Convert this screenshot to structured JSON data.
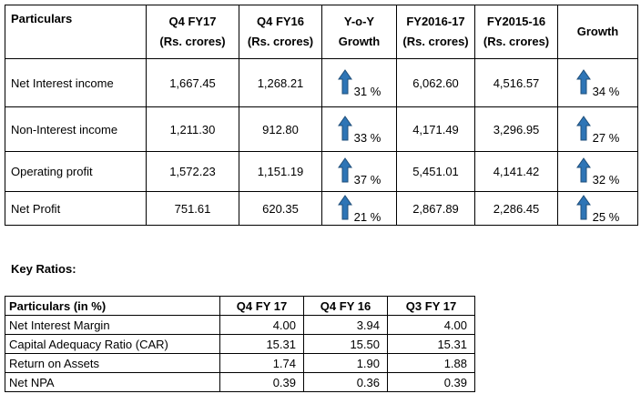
{
  "results_table": {
    "header": [
      [
        "Particulars"
      ],
      [
        "Q4 FY17",
        "(Rs. crores)"
      ],
      [
        "Q4 FY16",
        "(Rs. crores)"
      ],
      [
        "Y-o-Y",
        "Growth"
      ],
      [
        "FY2016-17",
        "(Rs. crores)"
      ],
      [
        "FY2015-16",
        "(Rs. crores)"
      ],
      [
        "Growth"
      ]
    ],
    "rows": [
      [
        "Net Interest income",
        "1,667.45",
        "1,268.21",
        "31 %",
        "6,062.60",
        "4,516.57",
        "34 %"
      ],
      [
        "Non-Interest income",
        "1,211.30",
        "912.80",
        "33 %",
        "4,171.49",
        "3,296.95",
        "27 %"
      ],
      [
        "Operating profit",
        "1,572.23",
        "1,151.19",
        "37 %",
        "5,451.01",
        "4,141.42",
        "32 %"
      ],
      [
        "Net Profit",
        "751.61",
        "620.35",
        "21 %",
        "2,867.89",
        "2,286.45",
        "25 %"
      ]
    ]
  },
  "key_ratios": {
    "title": "Key Ratios:",
    "header": [
      "Particulars (in %)",
      "Q4 FY 17",
      "Q4 FY 16",
      "Q3 FY 17"
    ],
    "rows": [
      [
        "Net Interest Margin",
        "4.00",
        "3.94",
        "4.00"
      ],
      [
        "Capital Adequacy Ratio (CAR)",
        "15.31",
        "15.50",
        "15.31"
      ],
      [
        "Return on Assets",
        "1.74",
        "1.90",
        "1.88"
      ],
      [
        "Net NPA",
        "0.39",
        "0.36",
        "0.39"
      ]
    ]
  }
}
